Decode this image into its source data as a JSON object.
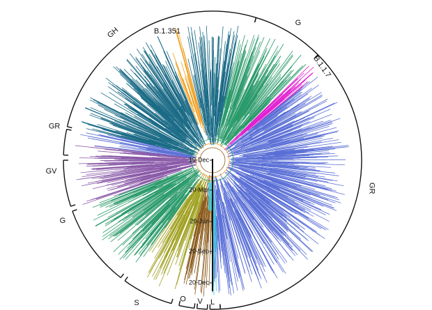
{
  "clades": [
    {
      "label": "GH"
    },
    {
      "label": "G"
    },
    {
      "label": "GR"
    },
    {
      "label": "L"
    },
    {
      "label": "V"
    },
    {
      "label": "O"
    },
    {
      "label": "S"
    },
    {
      "label": "G"
    },
    {
      "label": "GV"
    },
    {
      "label": "GR"
    }
  ],
  "lineages": [
    {
      "label": "B.1.351"
    },
    {
      "label": "B.1.1.7"
    }
  ],
  "time_axis": {
    "ticks": [
      "19-Dec",
      "20-Mar",
      "20-Jun",
      "20-Sep",
      "20-Dec"
    ]
  }
}
